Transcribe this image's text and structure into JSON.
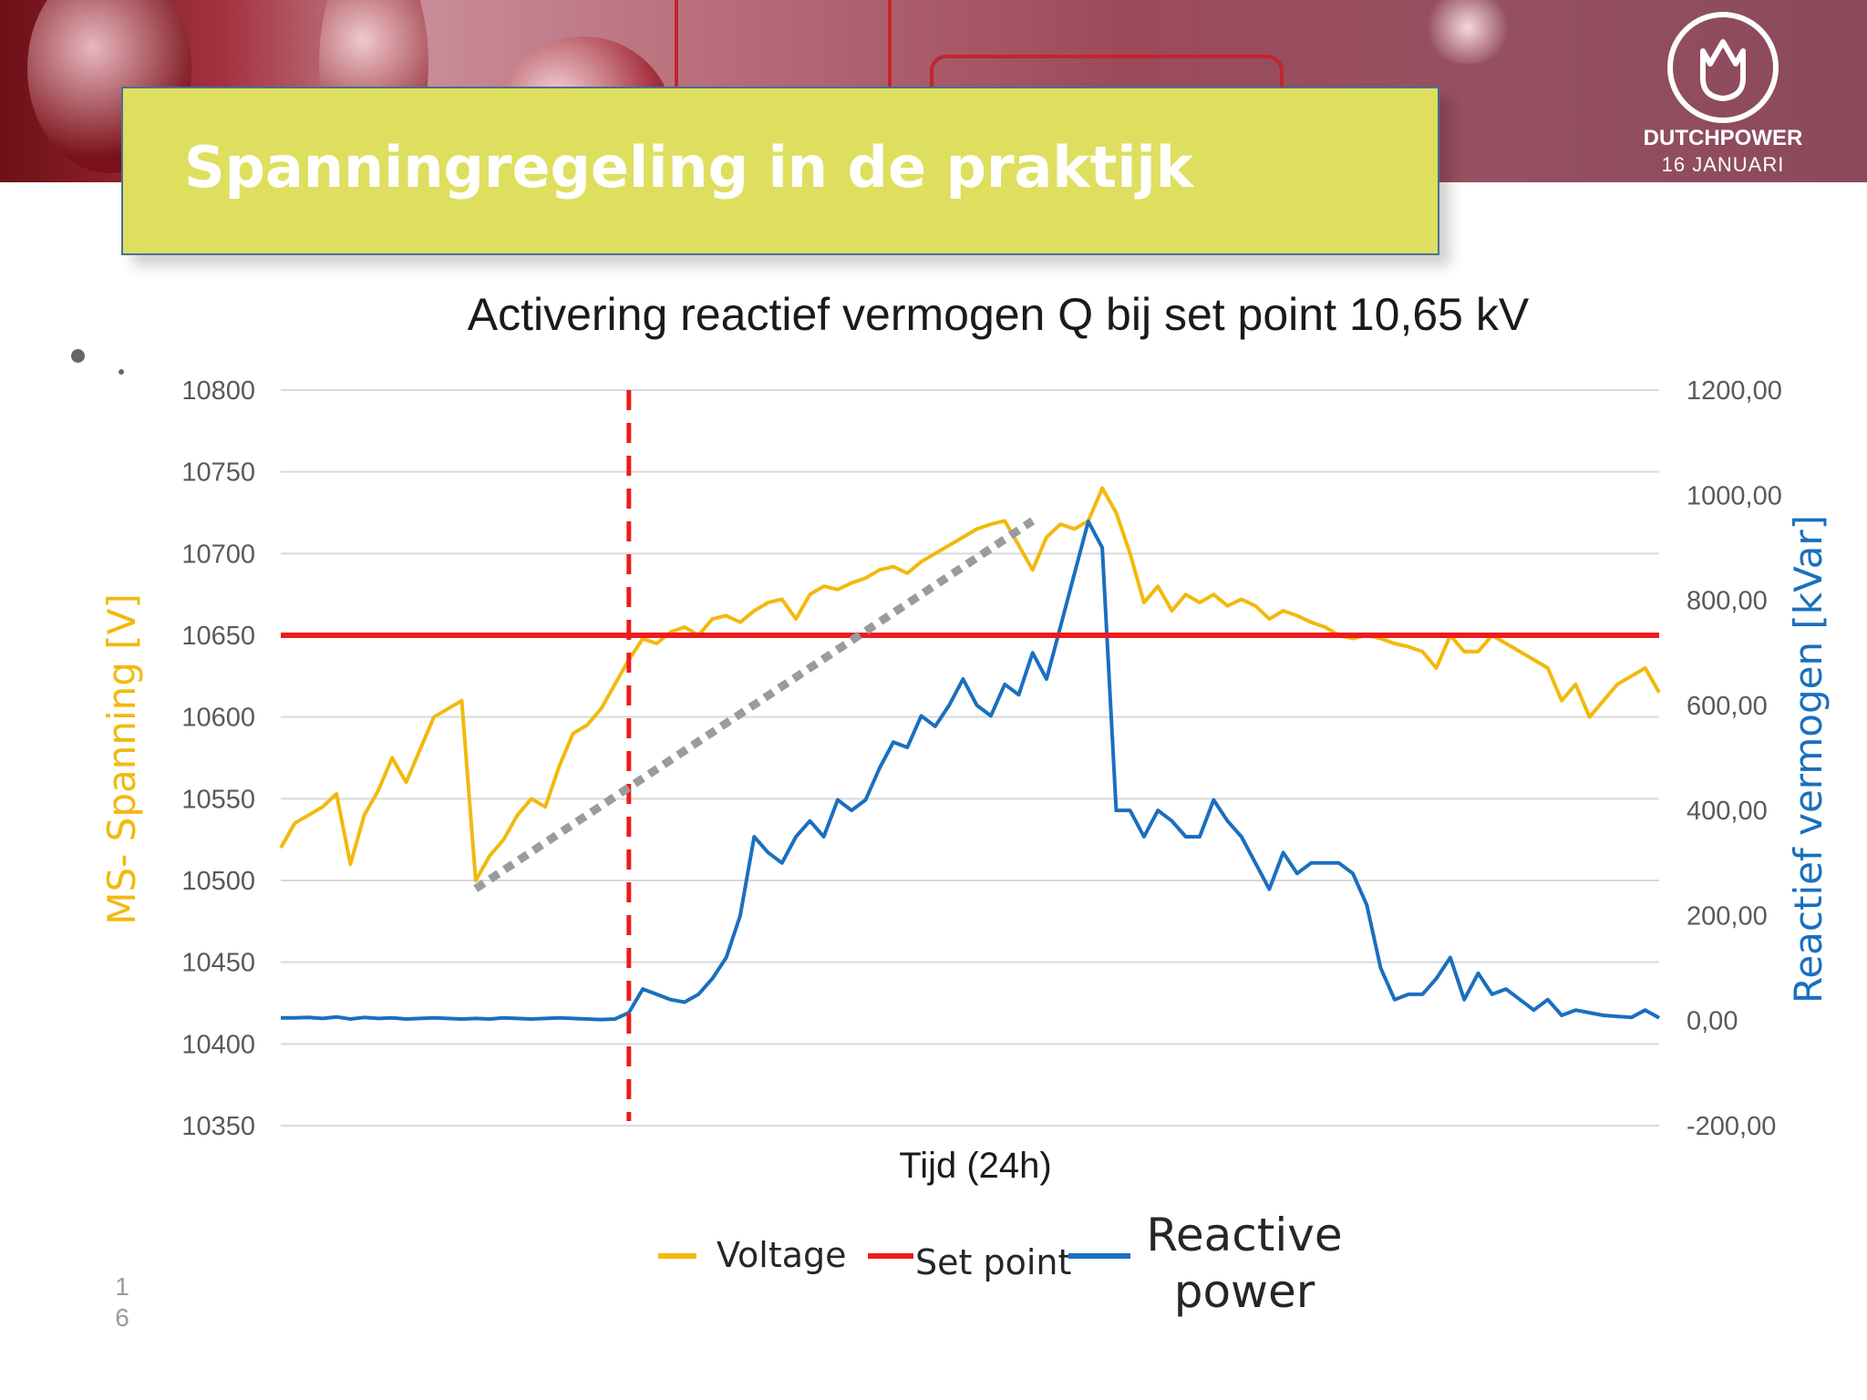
{
  "slide": {
    "title": "Spanningregeling in de praktijk",
    "logo_brand": "DUTCHPOWER",
    "logo_date": "16 JANUARI",
    "bullet_text": ".",
    "page_number_line1": "1",
    "page_number_line2": "6"
  },
  "colors": {
    "voltage": "#f2b90d",
    "setpoint": "#ee1c1c",
    "reactive": "#1a6fbf",
    "trend": "#9b9b9b",
    "grid": "#d9d9d9",
    "title_box": "#dedf5f"
  },
  "chart_data": {
    "type": "line",
    "title": "Activering reactief vermogen Q bij set point 10,65 kV",
    "xlabel": "Tijd (24h)",
    "ylabel": "MS- Spanning [V]",
    "ylabel_right": "Reactief vermogen [kVar]",
    "ylim": [
      10350,
      10800
    ],
    "ylim_right": [
      -200,
      1200
    ],
    "yticks_left": [
      "10800",
      "10750",
      "10700",
      "10650",
      "10600",
      "10550",
      "10500",
      "10450",
      "10400",
      "10350"
    ],
    "yticks_right": [
      "1200,00",
      "1000,00",
      "800,00",
      "600,00",
      "400,00",
      "200,00",
      "0,00",
      "-200,00"
    ],
    "grid": true,
    "legend_position": "bottom",
    "x_count": 100,
    "activation_x": 25,
    "setpoint_value": 10650,
    "series": [
      {
        "name": "Voltage",
        "axis": "left",
        "values": [
          10520,
          10535,
          10540,
          10545,
          10553,
          10510,
          10540,
          10555,
          10575,
          10560,
          10580,
          10600,
          10605,
          10610,
          10500,
          10515,
          10525,
          10540,
          10550,
          10545,
          10570,
          10590,
          10595,
          10605,
          10620,
          10635,
          10648,
          10645,
          10652,
          10655,
          10650,
          10660,
          10662,
          10658,
          10665,
          10670,
          10672,
          10660,
          10675,
          10680,
          10678,
          10682,
          10685,
          10690,
          10692,
          10688,
          10695,
          10700,
          10705,
          10710,
          10715,
          10718,
          10720,
          10705,
          10690,
          10710,
          10718,
          10715,
          10720,
          10740,
          10725,
          10700,
          10670,
          10680,
          10665,
          10675,
          10670,
          10675,
          10668,
          10672,
          10668,
          10660,
          10665,
          10662,
          10658,
          10655,
          10650,
          10648,
          10650,
          10648,
          10645,
          10643,
          10640,
          10630,
          10650,
          10640,
          10640,
          10650,
          10645,
          10640,
          10635,
          10630,
          10610,
          10620,
          10600,
          10610,
          10620,
          10625,
          10630,
          10615
        ]
      },
      {
        "name": "Set point",
        "axis": "left",
        "values": [
          10650,
          10650
        ]
      },
      {
        "name": "Reactive power",
        "axis": "right",
        "values": [
          5,
          5,
          6,
          4,
          7,
          3,
          6,
          4,
          5,
          3,
          4,
          5,
          4,
          3,
          4,
          3,
          5,
          4,
          3,
          4,
          5,
          4,
          3,
          2,
          3,
          15,
          60,
          50,
          40,
          35,
          50,
          80,
          120,
          200,
          350,
          320,
          300,
          350,
          380,
          350,
          420,
          400,
          420,
          480,
          530,
          520,
          580,
          560,
          600,
          650,
          600,
          580,
          640,
          620,
          700,
          650,
          750,
          850,
          950,
          900,
          400,
          400,
          350,
          400,
          380,
          350,
          350,
          420,
          380,
          350,
          300,
          250,
          320,
          280,
          300,
          300,
          300,
          280,
          220,
          100,
          40,
          50,
          50,
          80,
          120,
          40,
          90,
          50,
          60,
          40,
          20,
          40,
          10,
          20,
          15,
          10,
          8,
          6,
          20,
          5
        ]
      }
    ],
    "trendline": {
      "label": "",
      "axis": "left",
      "points": [
        [
          14,
          10495
        ],
        [
          54,
          10720
        ]
      ]
    }
  }
}
